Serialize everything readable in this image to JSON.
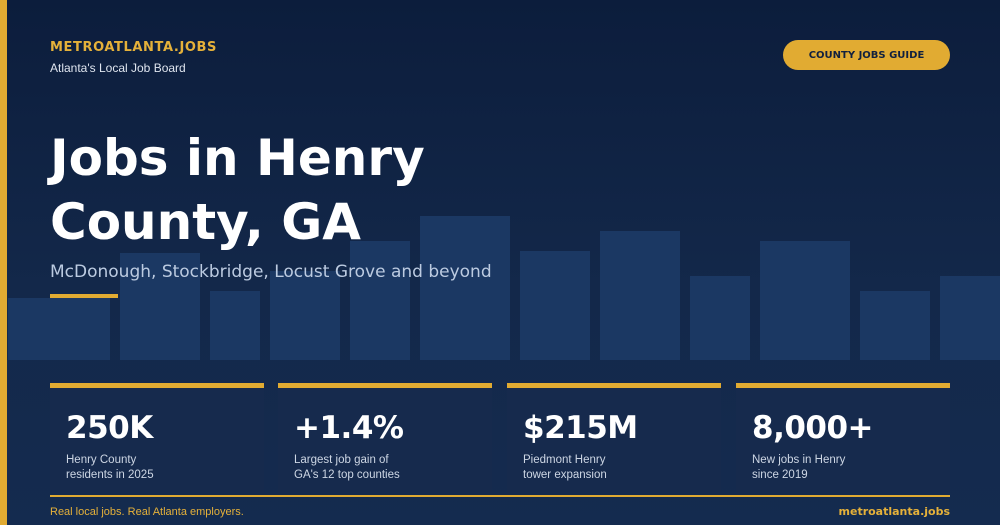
{
  "brand": {
    "name": "METROATLANTA.JOBS",
    "tagline": "Atlanta's Local Job Board"
  },
  "header": {
    "guide_button_label": "COUNTY JOBS GUIDE"
  },
  "hero": {
    "title": "Jobs in Henry County, GA",
    "subtitle": "McDonough, Stockbridge, Locust Grove and beyond"
  },
  "stats": [
    {
      "value": "250K",
      "label_line1": "Henry County",
      "label_line2": "residents in 2025"
    },
    {
      "value": "+1.4%",
      "label_line1": "Largest job gain of",
      "label_line2": "GA's 12 top counties"
    },
    {
      "value": "$215M",
      "label_line1": "Piedmont Henry",
      "label_line2": "tower expansion"
    },
    {
      "value": "8,000+",
      "label_line1": "New jobs in Henry",
      "label_line2": "since 2019"
    }
  ],
  "footer": {
    "left_text": "Real local jobs. Real Atlanta employers.",
    "right_text": "metroatlanta.jobs"
  },
  "colors": {
    "background": "#0c1d3c",
    "accent": "#e1ab32",
    "skyline": "#1b3863",
    "card": "#162a4d"
  }
}
